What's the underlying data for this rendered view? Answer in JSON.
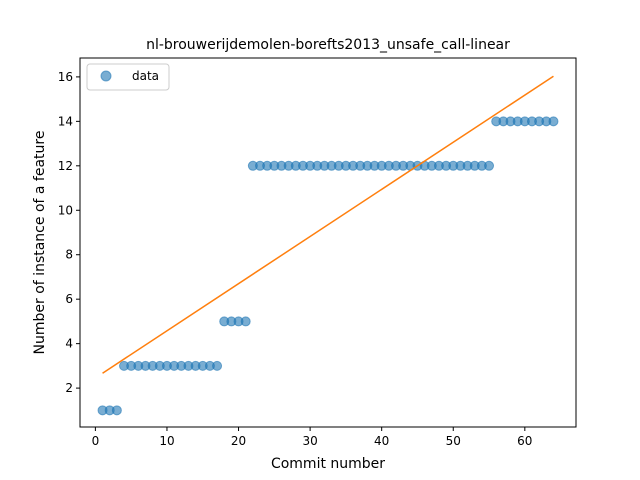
{
  "chart_data": {
    "type": "scatter",
    "title": "nl-brouwerijdemolen-borefts2013_unsafe_call-linear",
    "xlabel": "Commit number",
    "ylabel": "Number of instance of a feature",
    "xlim": [
      -2.15,
      67.15
    ],
    "ylim": [
      0.25,
      16.85
    ],
    "xticks": [
      0,
      10,
      20,
      30,
      40,
      50,
      60
    ],
    "yticks": [
      2,
      4,
      6,
      8,
      10,
      12,
      14,
      16
    ],
    "grid": false,
    "legend_position": "upper left",
    "series": [
      {
        "name": "data",
        "kind": "scatter",
        "color": "#1f77b4",
        "x": [
          1,
          2,
          3,
          4,
          5,
          6,
          7,
          8,
          9,
          10,
          11,
          12,
          13,
          14,
          15,
          16,
          17,
          18,
          19,
          20,
          21,
          22,
          23,
          24,
          25,
          26,
          27,
          28,
          29,
          30,
          31,
          32,
          33,
          34,
          35,
          36,
          37,
          38,
          39,
          40,
          41,
          42,
          43,
          44,
          45,
          46,
          47,
          48,
          49,
          50,
          51,
          52,
          53,
          54,
          55,
          56,
          57,
          58,
          59,
          60,
          61,
          62,
          63,
          64
        ],
        "y": [
          1,
          1,
          1,
          3,
          3,
          3,
          3,
          3,
          3,
          3,
          3,
          3,
          3,
          3,
          3,
          3,
          3,
          5,
          5,
          5,
          5,
          12,
          12,
          12,
          12,
          12,
          12,
          12,
          12,
          12,
          12,
          12,
          12,
          12,
          12,
          12,
          12,
          12,
          12,
          12,
          12,
          12,
          12,
          12,
          12,
          12,
          12,
          12,
          12,
          12,
          12,
          12,
          12,
          12,
          12,
          14,
          14,
          14,
          14,
          14,
          14,
          14,
          14,
          14
        ]
      },
      {
        "kind": "line",
        "color": "#ff7f0e",
        "x": [
          1,
          64
        ],
        "y": [
          2.67,
          16.03
        ]
      }
    ]
  }
}
